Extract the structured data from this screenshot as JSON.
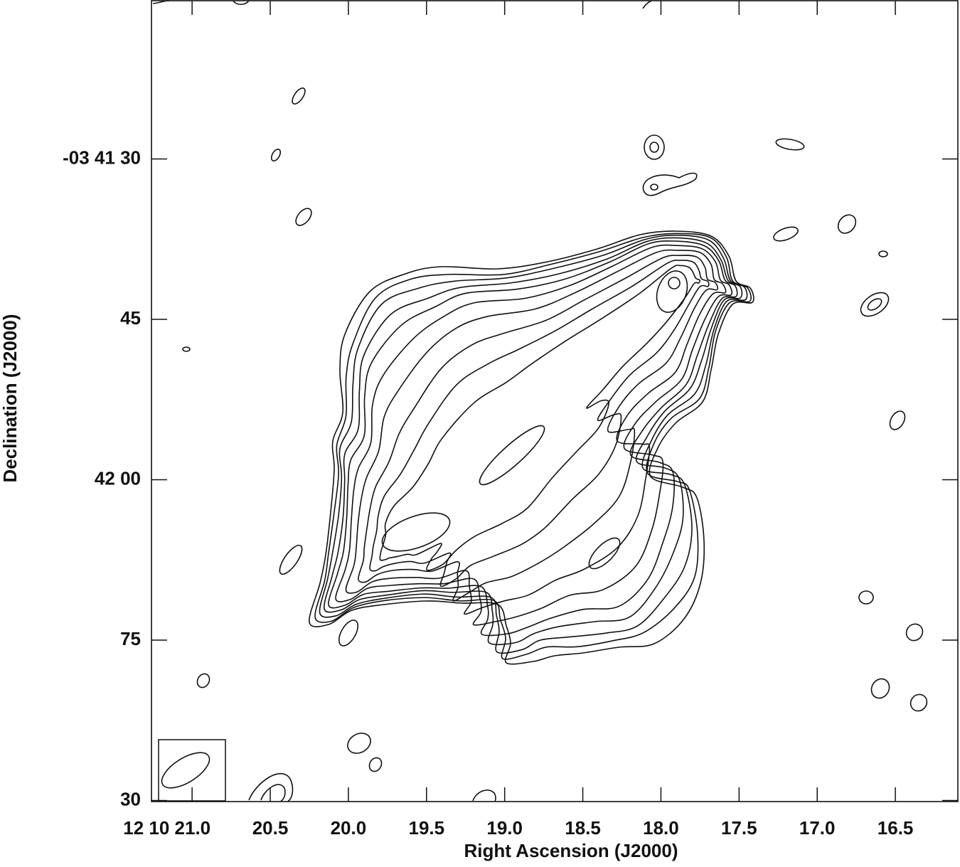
{
  "chart_data": {
    "type": "contour",
    "xlabel": "Right Ascension (J2000)",
    "ylabel": "Declination (J2000)",
    "xlim": [
      21.26,
      16.1
    ],
    "xticks": [
      {
        "value": 21.0,
        "label": "12 10 21.0"
      },
      20.5,
      {
        "value": 20.0,
        "label": "20.0"
      },
      19.5,
      {
        "value": 19.0,
        "label": "19.0"
      },
      18.5,
      {
        "value": 18.0,
        "label": "18.0"
      },
      17.5,
      {
        "value": 17.0,
        "label": "17.0"
      },
      16.5
    ],
    "ylim": [
      90.1,
      15.2
    ],
    "yticks": [
      {
        "value": 30,
        "label": "-03 41 30"
      },
      45,
      {
        "value": 60,
        "label": "42 00"
      },
      75,
      {
        "value": 90,
        "label": "30"
      }
    ]
  }
}
